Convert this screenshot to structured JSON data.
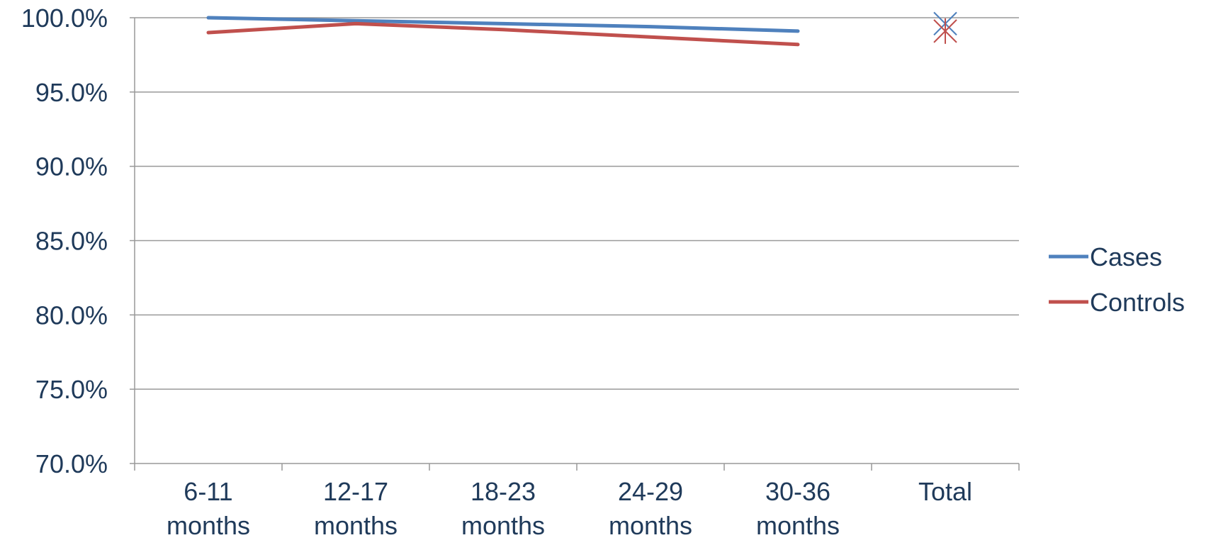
{
  "chart_data": {
    "type": "line",
    "categories": [
      [
        "6-11",
        "months"
      ],
      [
        "12-17",
        "months"
      ],
      [
        "18-23",
        "months"
      ],
      [
        "24-29",
        "months"
      ],
      [
        "30-36",
        "months"
      ],
      [
        "Total"
      ]
    ],
    "y_tick_labels": [
      "70.0%",
      "75.0%",
      "80.0%",
      "85.0%",
      "90.0%",
      "95.0%",
      "100.0%"
    ],
    "y_tick_values": [
      70,
      75,
      80,
      85,
      90,
      95,
      100
    ],
    "ylim": [
      70,
      100
    ],
    "grid": true,
    "legend_position": "right",
    "series": [
      {
        "name": "Cases",
        "color": "#4F81BD",
        "values": [
          100.0,
          99.8,
          99.6,
          99.4,
          99.1,
          null
        ],
        "total_marker": 99.6,
        "total_marker_style": "x"
      },
      {
        "name": "Controls",
        "color": "#C0504D",
        "values": [
          99.0,
          99.6,
          99.2,
          98.7,
          98.2,
          null
        ],
        "total_marker": 99.1,
        "total_marker_style": "star"
      }
    ]
  },
  "colors": {
    "axis": "#999999",
    "grid": "#999999",
    "text": "#1F3A5A"
  }
}
